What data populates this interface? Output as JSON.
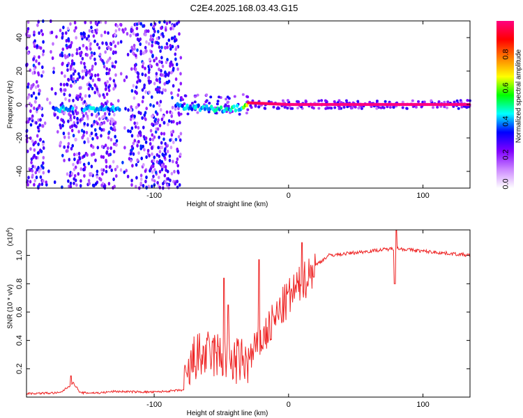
{
  "title": "C2E4.2025.168.03.43.G15",
  "chart_data": [
    {
      "type": "heatmap",
      "name": "spectrogram",
      "xlabel": "Height of straight line (km)",
      "ylabel": "Frequency (Hz)",
      "xlim": [
        -195,
        135
      ],
      "ylim": [
        -50,
        50
      ],
      "x_ticks": [
        -100,
        0,
        100
      ],
      "x_tick_labels": [
        "-100",
        "0",
        "100"
      ],
      "y_ticks": [
        -40,
        -20,
        0,
        20,
        40
      ],
      "y_tick_labels": [
        "-40",
        "-20",
        "0",
        "20",
        "40"
      ],
      "noise_region_x": [
        -195,
        -80
      ],
      "signal_trace": [
        {
          "x": -175,
          "y": -3,
          "amp": 0.45
        },
        {
          "x": -150,
          "y": -2,
          "amp": 0.5
        },
        {
          "x": -130,
          "y": -3,
          "amp": 0.45
        },
        {
          "x": -80,
          "y": -1,
          "amp": 0.45
        },
        {
          "x": -55,
          "y": -3,
          "amp": 0.5
        },
        {
          "x": -35,
          "y": -2,
          "amp": 0.55
        },
        {
          "x": -30,
          "y": 1,
          "amp": 0.95
        },
        {
          "x": 0,
          "y": 0,
          "amp": 1.0
        },
        {
          "x": 135,
          "y": 0,
          "amp": 1.0
        }
      ]
    },
    {
      "type": "colorbar",
      "name": "amplitude-colorbar",
      "label": "Normalized spectral amplitude",
      "range": [
        0,
        1
      ],
      "ticks": [
        0.0,
        0.2,
        0.4,
        0.6,
        0.8
      ],
      "tick_labels": [
        "0.0",
        "0.2",
        "0.4",
        "0.6",
        "0.8"
      ],
      "colors": [
        "#ffffff",
        "#cc88ff",
        "#8000ff",
        "#0000ff",
        "#00ffff",
        "#00ff00",
        "#ffff00",
        "#ff8000",
        "#ff0000",
        "#ff0080"
      ]
    },
    {
      "type": "line",
      "name": "snr",
      "xlabel": "Height of straight line (km)",
      "ylabel": "SNR (10 * v/v)",
      "y_multiplier": "(x10",
      "y_multiplier_exp": "4",
      "y_multiplier_close": ")",
      "color": "#ee2222",
      "xlim": [
        -195,
        135
      ],
      "ylim": [
        0,
        1.18
      ],
      "x_ticks": [
        -100,
        0,
        100
      ],
      "x_tick_labels": [
        "-100",
        "0",
        "100"
      ],
      "y_ticks": [
        0.2,
        0.4,
        0.6,
        0.8,
        1.0
      ],
      "y_tick_labels": [
        "0.2",
        "0.4",
        "0.6",
        "0.8",
        "1.0"
      ],
      "baseline": [
        {
          "x": -195,
          "y": 0.025
        },
        {
          "x": -170,
          "y": 0.03
        },
        {
          "x": -160,
          "y": 0.1
        },
        {
          "x": -155,
          "y": 0.03
        },
        {
          "x": -140,
          "y": 0.03
        },
        {
          "x": -130,
          "y": 0.04
        },
        {
          "x": -100,
          "y": 0.035
        },
        {
          "x": -78,
          "y": 0.05
        },
        {
          "x": -70,
          "y": 0.28
        },
        {
          "x": -55,
          "y": 0.3
        },
        {
          "x": -40,
          "y": 0.25
        },
        {
          "x": -30,
          "y": 0.25
        },
        {
          "x": -20,
          "y": 0.4
        },
        {
          "x": -10,
          "y": 0.55
        },
        {
          "x": 0,
          "y": 0.7
        },
        {
          "x": 10,
          "y": 0.8
        },
        {
          "x": 20,
          "y": 0.93
        },
        {
          "x": 30,
          "y": 1.0
        },
        {
          "x": 50,
          "y": 1.02
        },
        {
          "x": 80,
          "y": 1.05
        },
        {
          "x": 100,
          "y": 1.03
        },
        {
          "x": 135,
          "y": 1.0
        }
      ],
      "spikes": [
        {
          "x": -162,
          "y": 0.15
        },
        {
          "x": -48,
          "y": 0.84
        },
        {
          "x": -45,
          "y": 0.65
        },
        {
          "x": -22,
          "y": 0.97
        },
        {
          "x": 10,
          "y": 1.09
        },
        {
          "x": 80,
          "y": 1.18
        },
        {
          "x": 79,
          "y": 0.8
        }
      ]
    }
  ]
}
